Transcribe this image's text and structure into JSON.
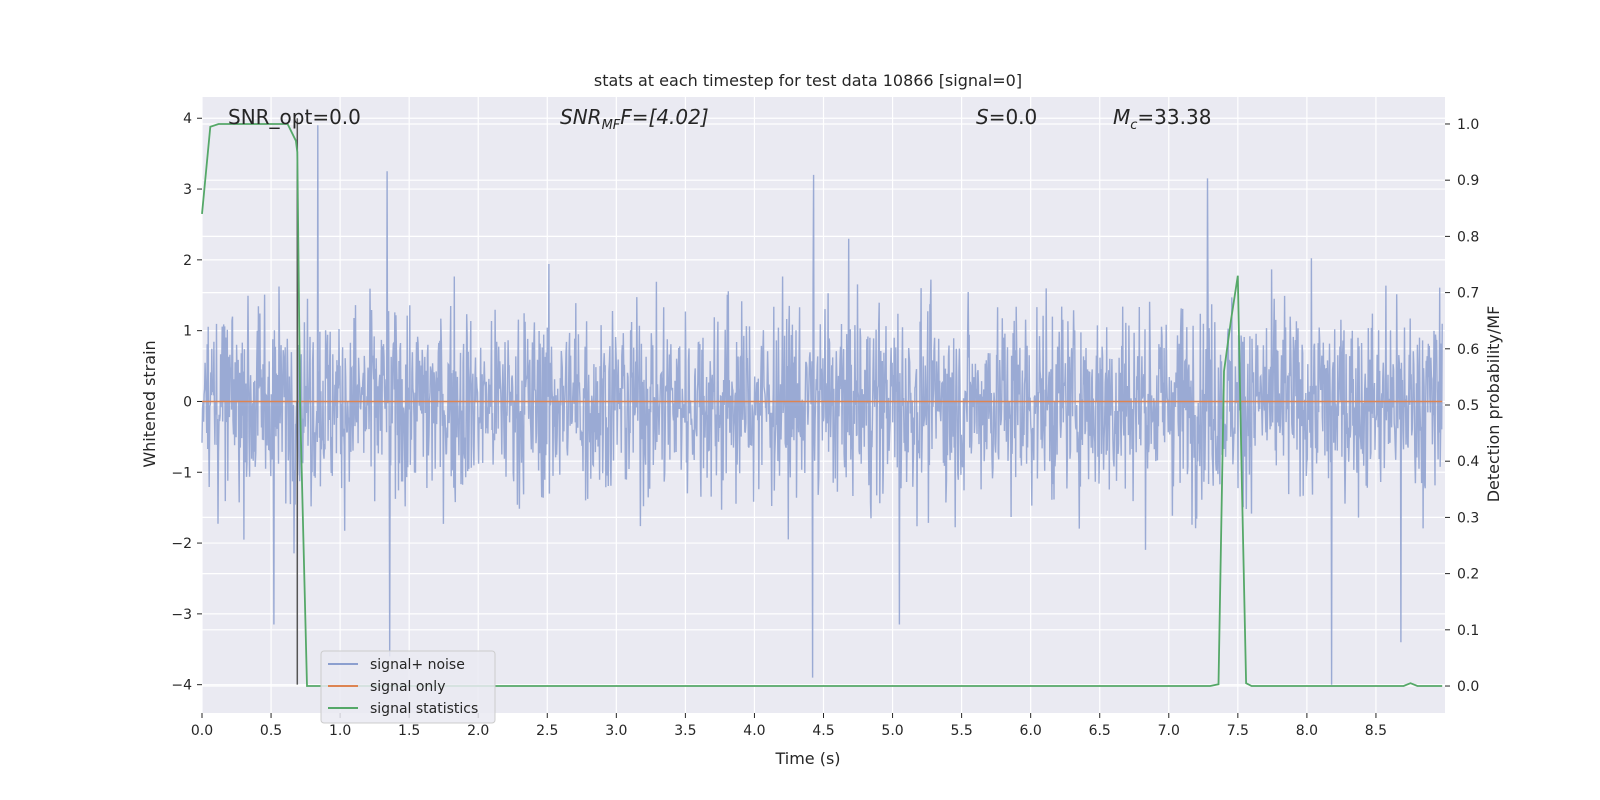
{
  "chart_data": {
    "type": "line",
    "title": "stats at each timestep for test data 10866 [signal=0]",
    "xlabel": "Time (s)",
    "ylabel_left": "Whitened strain",
    "ylabel_right": "Detection probability/MF",
    "xlim": [
      0.0,
      9.0
    ],
    "ylim_left": [
      -4.4,
      4.3
    ],
    "ylim_right": [
      -0.048,
      1.048
    ],
    "x_ticks": [
      "0.0",
      "0.5",
      "1.0",
      "1.5",
      "2.0",
      "2.5",
      "3.0",
      "3.5",
      "4.0",
      "4.5",
      "5.0",
      "5.5",
      "6.0",
      "6.5",
      "7.0",
      "7.5",
      "8.0",
      "8.5"
    ],
    "y_ticks_left": [
      "−4",
      "−3",
      "−2",
      "−1",
      "0",
      "1",
      "2",
      "3",
      "4"
    ],
    "y_ticks_right": [
      "0.0",
      "0.1",
      "0.2",
      "0.3",
      "0.4",
      "0.5",
      "0.6",
      "0.7",
      "0.8",
      "0.9",
      "1.0"
    ],
    "grid": true,
    "legend_position": "lower-left",
    "annotations": {
      "snr_opt": "SNR_opt=0.0",
      "snr_mf_main": "SNR",
      "snr_mf_sub": "MF",
      "snr_mf_rest": "F=[4.02]",
      "s_main": "S",
      "s_rest": "=0.0",
      "mc_main": "M",
      "mc_sub": "c",
      "mc_rest": "=33.38"
    },
    "marker_x": 0.69,
    "series": [
      {
        "name": "signal+ noise",
        "color": "#8c9fcf",
        "axis": "left",
        "description_values": "noise samples roughly within [-1.6, 1.6] with spikes reaching ~3.9 and ~-4"
      },
      {
        "name": "signal only",
        "color": "#dd8452",
        "axis": "left",
        "values_constant": 0.0
      },
      {
        "name": "signal statistics",
        "color": "#55a868",
        "axis": "right",
        "x": [
          0.0,
          0.06,
          0.12,
          0.2,
          0.3,
          0.4,
          0.5,
          0.6,
          0.62,
          0.68,
          0.69,
          0.71,
          0.76,
          0.8,
          1.5,
          2.5,
          3.5,
          4.5,
          5.5,
          6.5,
          7.0,
          7.3,
          7.36,
          7.4,
          7.45,
          7.5,
          7.53,
          7.56,
          7.6,
          8.0,
          8.5,
          8.7,
          8.75,
          8.8,
          8.98
        ],
        "y": [
          0.84,
          0.995,
          1.0,
          1.0,
          1.0,
          1.0,
          1.0,
          1.0,
          1.0,
          0.97,
          0.95,
          0.5,
          0.0,
          0.0,
          0.0,
          0.0,
          0.0,
          0.0,
          0.0,
          0.0,
          0.0,
          0.0,
          0.003,
          0.56,
          0.65,
          0.73,
          0.35,
          0.005,
          0.0,
          0.0,
          0.0,
          0.0,
          0.005,
          0.0,
          0.0
        ]
      }
    ]
  }
}
